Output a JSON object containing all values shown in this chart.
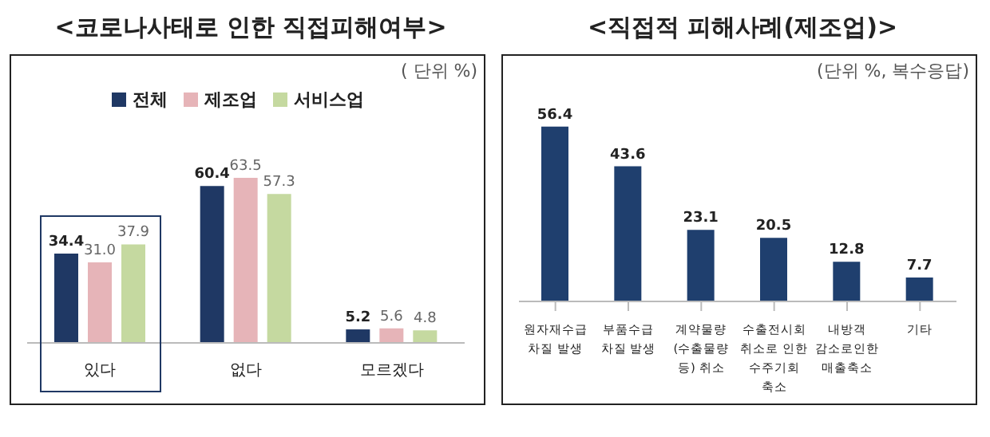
{
  "chart_data": [
    {
      "type": "bar",
      "title": "<코로나사태로 인한 직접피해여부>",
      "annotations": [
        "( 단위 %)"
      ],
      "categories": [
        "있다",
        "없다",
        "모르겠다"
      ],
      "series": [
        {
          "name": "전체",
          "color": "#1f3864",
          "values": [
            34.4,
            60.4,
            5.2
          ],
          "value_labels": [
            "34.4",
            "60.4",
            "5.2"
          ]
        },
        {
          "name": "제조업",
          "color": "#e6b4b8",
          "values": [
            31.0,
            63.5,
            5.6
          ],
          "value_labels": [
            "31.0",
            "63.5",
            "5.6"
          ]
        },
        {
          "name": "서비스업",
          "color": "#c5d9a0",
          "values": [
            37.9,
            57.3,
            4.8
          ],
          "value_labels": [
            "37.9",
            "57.3",
            "4.8"
          ]
        }
      ],
      "legend": "top",
      "grid": false
    },
    {
      "type": "bar",
      "title": "<직접적 피해사례(제조업)>",
      "annotations": [
        "(단위 %, 복수응답)"
      ],
      "categories": [
        "원자재수급 차질 발생",
        "부품수급 차질 발생",
        "계약물량 (수출물량 등) 취소",
        "수출전시회 취소로 인한 수주기회 축소",
        "내방객 감소로인한 매출축소",
        "기타"
      ],
      "values": [
        56.4,
        43.6,
        23.1,
        20.5,
        12.8,
        7.7
      ],
      "color": "#1f3f6e",
      "data_labels": true,
      "grid": false
    }
  ]
}
